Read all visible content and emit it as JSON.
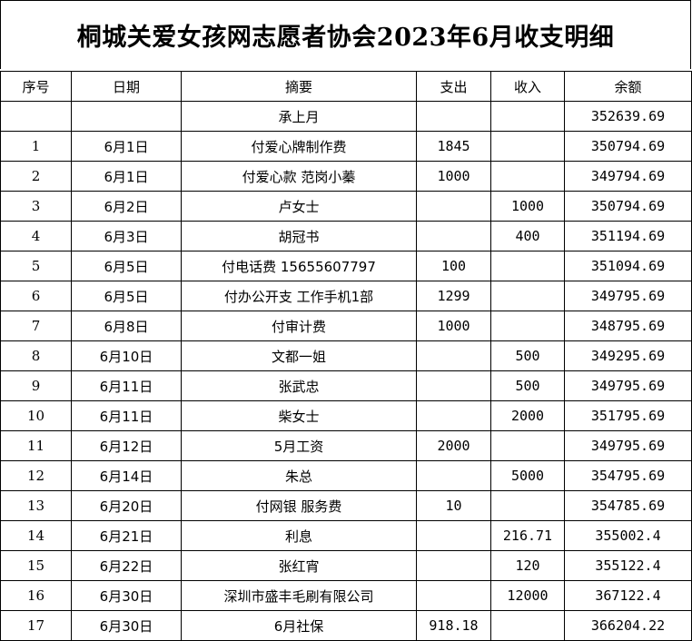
{
  "title": "桐城关爱女孩网志愿者协会2023年6月收支明细",
  "headers": [
    "序号",
    "日期",
    "摘要",
    "支出",
    "收入",
    "余额"
  ],
  "rows": [
    {
      "no": "",
      "date": "",
      "summary": "承上月",
      "expense": "",
      "income": "",
      "balance": "352639.69"
    },
    {
      "no": "1",
      "date": "6月1日",
      "summary": "付爱心牌制作费",
      "expense": "1845",
      "income": "",
      "balance": "350794.69"
    },
    {
      "no": "2",
      "date": "6月1日",
      "summary": "付爱心款 范岗小蓁",
      "expense": "1000",
      "income": "",
      "balance": "349794.69"
    },
    {
      "no": "3",
      "date": "6月2日",
      "summary": "卢女士",
      "expense": "",
      "income": "1000",
      "balance": "350794.69"
    },
    {
      "no": "4",
      "date": "6月3日",
      "summary": "胡冠书",
      "expense": "",
      "income": "400",
      "balance": "351194.69"
    },
    {
      "no": "5",
      "date": "6月5日",
      "summary": "付电话费 15655607797",
      "expense": "100",
      "income": "",
      "balance": "351094.69"
    },
    {
      "no": "6",
      "date": "6月5日",
      "summary": "付办公开支 工作手机1部",
      "expense": "1299",
      "income": "",
      "balance": "349795.69"
    },
    {
      "no": "7",
      "date": "6月8日",
      "summary": "付审计费",
      "expense": "1000",
      "income": "",
      "balance": "348795.69"
    },
    {
      "no": "8",
      "date": "6月10日",
      "summary": "文都一姐",
      "expense": "",
      "income": "500",
      "balance": "349295.69"
    },
    {
      "no": "9",
      "date": "6月11日",
      "summary": "张武忠",
      "expense": "",
      "income": "500",
      "balance": "349795.69"
    },
    {
      "no": "10",
      "date": "6月11日",
      "summary": "柴女士",
      "expense": "",
      "income": "2000",
      "balance": "351795.69"
    },
    {
      "no": "11",
      "date": "6月12日",
      "summary": "5月工资",
      "expense": "2000",
      "income": "",
      "balance": "349795.69"
    },
    {
      "no": "12",
      "date": "6月14日",
      "summary": "朱总",
      "expense": "",
      "income": "5000",
      "balance": "354795.69"
    },
    {
      "no": "13",
      "date": "6月20日",
      "summary": "付网银 服务费",
      "expense": "10",
      "income": "",
      "balance": "354785.69"
    },
    {
      "no": "14",
      "date": "6月21日",
      "summary": "利息",
      "expense": "",
      "income": "216.71",
      "balance": "355002.4"
    },
    {
      "no": "15",
      "date": "6月22日",
      "summary": "张红宵",
      "expense": "",
      "income": "120",
      "balance": "355122.4"
    },
    {
      "no": "16",
      "date": "6月30日",
      "summary": "深圳市盛丰毛刷有限公司",
      "expense": "",
      "income": "12000",
      "balance": "367122.4"
    },
    {
      "no": "17",
      "date": "6月30日",
      "summary": "6月社保",
      "expense": "918.18",
      "income": "",
      "balance": "366204.22"
    }
  ]
}
